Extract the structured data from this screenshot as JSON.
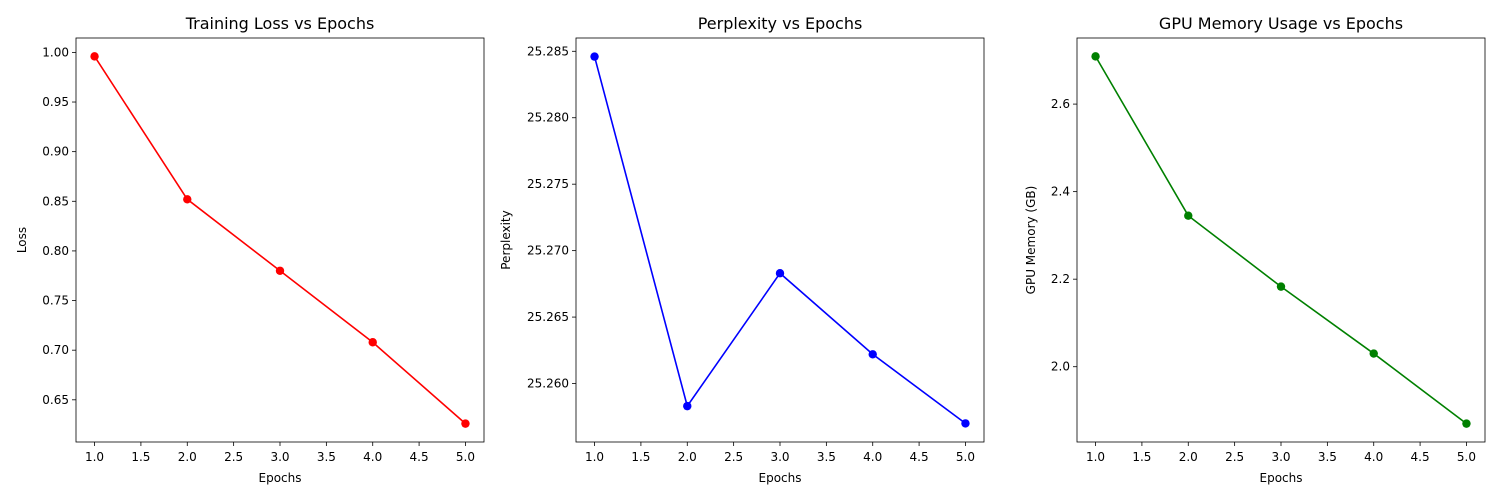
{
  "chart_data": [
    {
      "type": "line",
      "title": "Training Loss vs Epochs",
      "xlabel": "Epochs",
      "ylabel": "Loss",
      "color": "#ff0000",
      "x": [
        1,
        2,
        3,
        4,
        5
      ],
      "y": [
        0.996,
        0.852,
        0.78,
        0.708,
        0.626
      ],
      "xlim": [
        0.8,
        5.2
      ],
      "ylim": [
        0.6075,
        1.0145
      ],
      "xticks": [
        1.0,
        1.5,
        2.0,
        2.5,
        3.0,
        3.5,
        4.0,
        4.5,
        5.0
      ],
      "yticks": [
        0.65,
        0.7,
        0.75,
        0.8,
        0.85,
        0.9,
        0.95,
        1.0
      ],
      "ytick_decimals": 2,
      "grid": false,
      "marker": "circle"
    },
    {
      "type": "line",
      "title": "Perplexity vs Epochs",
      "xlabel": "Epochs",
      "ylabel": "Perplexity",
      "color": "#0000ff",
      "x": [
        1,
        2,
        3,
        4,
        5
      ],
      "y": [
        25.2846,
        25.2583,
        25.2683,
        25.2622,
        25.257
      ],
      "xlim": [
        0.8,
        5.2
      ],
      "ylim": [
        25.2556,
        25.286
      ],
      "xticks": [
        1.0,
        1.5,
        2.0,
        2.5,
        3.0,
        3.5,
        4.0,
        4.5,
        5.0
      ],
      "yticks": [
        25.26,
        25.265,
        25.27,
        25.275,
        25.28,
        25.285
      ],
      "ytick_decimals": 3,
      "grid": false,
      "marker": "circle"
    },
    {
      "type": "line",
      "title": "GPU Memory Usage vs Epochs",
      "xlabel": "Epochs",
      "ylabel": "GPU Memory (GB)",
      "color": "#008000",
      "x": [
        1,
        2,
        3,
        4,
        5
      ],
      "y": [
        2.709,
        2.345,
        2.183,
        2.03,
        1.87
      ],
      "xlim": [
        0.8,
        5.2
      ],
      "ylim": [
        1.828,
        2.751
      ],
      "xticks": [
        1.0,
        1.5,
        2.0,
        2.5,
        3.0,
        3.5,
        4.0,
        4.5,
        5.0
      ],
      "yticks": [
        2.0,
        2.2,
        2.4,
        2.6
      ],
      "ytick_decimals": 1,
      "grid": false,
      "marker": "circle"
    }
  ]
}
